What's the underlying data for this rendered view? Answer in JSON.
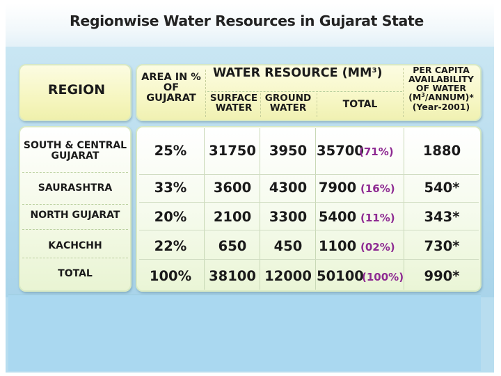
{
  "title": "Regionwise Water Resources in Gujarat State",
  "headers": {
    "region": "REGION",
    "area": "AREA IN % OF GUJARAT",
    "water_resource": "WATER RESOURCE (MM",
    "water_resource_sup": "3",
    "water_resource_close": ")",
    "surface": "SURFACE WATER",
    "ground": "GROUND WATER",
    "total": "TOTAL",
    "per_capita_l1": "PER CAPITA AVAILABILITY OF WATER",
    "per_capita_unit_pre": "(M",
    "per_capita_unit_sup": "3",
    "per_capita_unit_post": "/ANNUM)*",
    "per_capita_year": "(Year-2001)"
  },
  "rows": [
    {
      "region": "SOUTH & CENTRAL GUJARAT",
      "area": "25%",
      "surface": "31750",
      "ground": "3950",
      "total": "35700",
      "share": "(71%)",
      "per_capita": "1880"
    },
    {
      "region": "SAURASHTRA",
      "area": "33%",
      "surface": "3600",
      "ground": "4300",
      "total": "7900",
      "share": "(16%)",
      "per_capita": "540*"
    },
    {
      "region": "NORTH GUJARAT",
      "area": "20%",
      "surface": "2100",
      "ground": "3300",
      "total": "5400",
      "share": "(11%)",
      "per_capita": "343*"
    },
    {
      "region": "KACHCHH",
      "area": "22%",
      "surface": "650",
      "ground": "450",
      "total": "1100",
      "share": "(02%)",
      "per_capita": "730*"
    },
    {
      "region": "TOTAL",
      "area": "100%",
      "surface": "38100",
      "ground": "12000",
      "total": "50100",
      "share": "(100%)",
      "per_capita": "990*"
    }
  ],
  "colors": {
    "share_text": "#8e2a92",
    "background": "#b8ddef",
    "header_panel": "#f7f7c6",
    "body_panel": "#f3f9e8"
  }
}
